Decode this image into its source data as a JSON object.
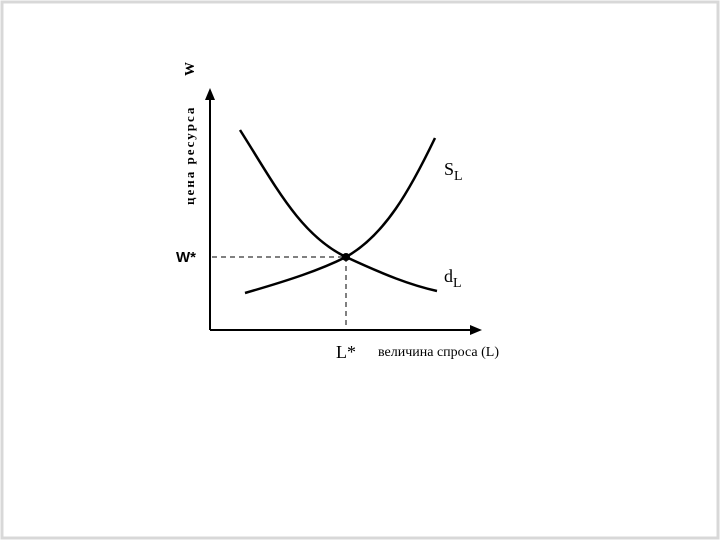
{
  "axes": {
    "y_label": "цена ресурса",
    "y_symbol": "W",
    "x_label": "величина спроса (L)"
  },
  "equilibrium": {
    "price": "W*",
    "quantity": "L*"
  },
  "supply": {
    "main": "S",
    "sub": "L"
  },
  "demand": {
    "main": "d",
    "sub": "L"
  }
}
